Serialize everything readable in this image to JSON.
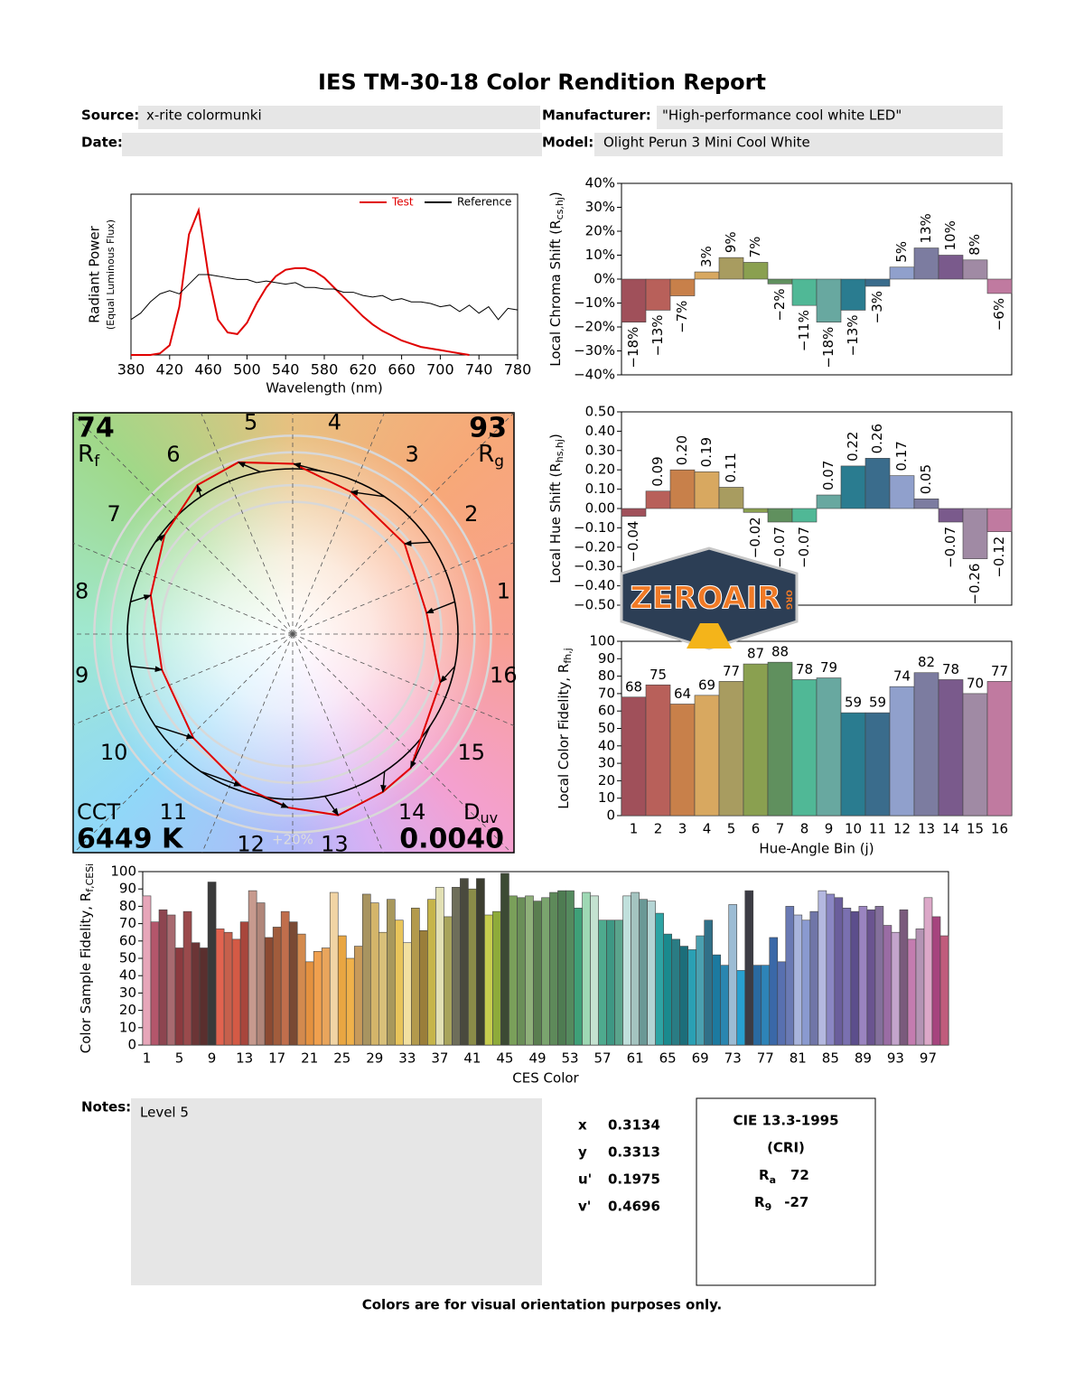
{
  "header": {
    "title": "IES TM-30-18 Color Rendition Report",
    "source_label": "Source:",
    "source": "x-rite colormunki",
    "manufacturer_label": "Manufacturer:",
    "manufacturer": "\"High-performance cool white LED\"",
    "date_label": "Date:",
    "model_label": "Model:",
    "model": "Olight Perun 3 Mini Cool White"
  },
  "chart_data": [
    {
      "type": "line",
      "xlabel": "Wavelength (nm)",
      "ylabel": [
        "Radiant Power",
        "(Equal Luminous Flux)"
      ],
      "x": [
        380,
        390,
        400,
        410,
        420,
        430,
        440,
        450,
        460,
        470,
        480,
        490,
        500,
        510,
        520,
        530,
        540,
        550,
        560,
        570,
        580,
        590,
        600,
        610,
        620,
        630,
        640,
        650,
        660,
        670,
        680,
        690,
        700,
        710,
        720,
        730,
        740,
        750,
        760,
        770,
        780
      ],
      "series": [
        {
          "name": "Test",
          "color": "#e00000",
          "values": [
            0,
            0,
            0,
            0.01,
            0.06,
            0.3,
            0.75,
            0.9,
            0.5,
            0.22,
            0.14,
            0.13,
            0.2,
            0.32,
            0.42,
            0.49,
            0.53,
            0.54,
            0.54,
            0.52,
            0.48,
            0.42,
            0.36,
            0.3,
            0.24,
            0.19,
            0.15,
            0.12,
            0.09,
            0.07,
            0.05,
            0.04,
            0.03,
            0.02,
            0.01,
            0,
            null,
            null,
            null,
            null,
            null
          ]
        },
        {
          "name": "Reference",
          "color": "#000000",
          "values": [
            0.22,
            0.26,
            0.33,
            0.38,
            0.4,
            0.38,
            0.44,
            0.5,
            0.5,
            0.49,
            0.48,
            0.47,
            0.47,
            0.45,
            0.46,
            0.45,
            0.44,
            0.45,
            0.42,
            0.42,
            0.41,
            0.41,
            0.39,
            0.39,
            0.37,
            0.36,
            0.37,
            0.34,
            0.35,
            0.33,
            0.33,
            0.32,
            0.3,
            0.31,
            0.27,
            0.31,
            0.26,
            0.3,
            0.22,
            0.29,
            0.28
          ]
        }
      ],
      "xlim": [
        380,
        780
      ],
      "xticks": [
        380,
        420,
        460,
        500,
        540,
        580,
        620,
        660,
        700,
        740,
        780
      ],
      "ylim": [
        0,
        1
      ]
    },
    {
      "type": "bar",
      "ylabel": {
        "text": "Local Chroma Shift (R",
        "sub": "cs,hj",
        "end": ")"
      },
      "values": [
        -18,
        -13,
        -7,
        3,
        9,
        7,
        -2,
        -11,
        -18,
        -13,
        -3,
        5,
        13,
        10,
        8,
        -6
      ],
      "value_labels": [
        "−18%",
        "−13%",
        "−7%",
        "3%",
        "9%",
        "7%",
        "−2%",
        "−11%",
        "−18%",
        "−13%",
        "−3%",
        "5%",
        "13%",
        "10%",
        "8%",
        "−6%"
      ],
      "colors": [
        "#a0505a",
        "#b8605a",
        "#c8804a",
        "#d8a860",
        "#a89c60",
        "#8aa050",
        "#60905e",
        "#50b896",
        "#68a8a0",
        "#2a7c90",
        "#3a6c8c",
        "#90a0cc",
        "#7c7ca0",
        "#7a5a8c",
        "#a08aa4",
        "#c07aa0"
      ],
      "ylim": [
        -40,
        40
      ],
      "yticks": [
        {
          "value": 40,
          "label": "40%"
        },
        {
          "value": 30,
          "label": "30%"
        },
        {
          "value": 20,
          "label": "20%"
        },
        {
          "value": 10,
          "label": "10%"
        },
        {
          "value": 0,
          "label": "0%"
        },
        {
          "value": -10,
          "label": "−10%"
        },
        {
          "value": -20,
          "label": "−20%"
        },
        {
          "value": -30,
          "label": "−30%"
        },
        {
          "value": -40,
          "label": "−40%"
        }
      ]
    },
    {
      "type": "bar",
      "ylabel": {
        "text": "Local Hue Shift (R",
        "sub": "hs,hj",
        "end": ")"
      },
      "values": [
        -0.04,
        0.09,
        0.2,
        0.19,
        0.11,
        -0.02,
        -0.07,
        -0.07,
        0.07,
        0.22,
        0.26,
        0.17,
        0.05,
        -0.07,
        -0.26,
        -0.12
      ],
      "value_labels": [
        "−0.04",
        "0.09",
        "0.20",
        "0.19",
        "0.11",
        "−0.02",
        "−0.07",
        "−0.07",
        "0.07",
        "0.22",
        "0.26",
        "0.17",
        "0.05",
        "−0.07",
        "−0.26",
        "−0.12"
      ],
      "colors": [
        "#a0505a",
        "#b8605a",
        "#c8804a",
        "#d8a860",
        "#a89c60",
        "#8aa050",
        "#60905e",
        "#50b896",
        "#68a8a0",
        "#2a7c90",
        "#3a6c8c",
        "#90a0cc",
        "#7c7ca0",
        "#7a5a8c",
        "#a08aa4",
        "#c07aa0"
      ],
      "ylim": [
        -0.5,
        0.5
      ],
      "yticks": [
        {
          "value": 0.5,
          "label": "0.50"
        },
        {
          "value": 0.4,
          "label": "0.40"
        },
        {
          "value": 0.3,
          "label": "0.30"
        },
        {
          "value": 0.2,
          "label": "0.20"
        },
        {
          "value": 0.1,
          "label": "0.10"
        },
        {
          "value": 0,
          "label": "0.00"
        },
        {
          "value": -0.1,
          "label": "−0.10"
        },
        {
          "value": -0.2,
          "label": "−0.20"
        },
        {
          "value": -0.3,
          "label": "−0.30"
        },
        {
          "value": -0.4,
          "label": "−0.40"
        },
        {
          "value": -0.5,
          "label": "−0.50"
        }
      ]
    },
    {
      "type": "bar",
      "ylabel": {
        "text": "Local Color Fidelity, R",
        "sub": "fh,j"
      },
      "xlabel": "Hue-Angle Bin (j)",
      "categories": [
        1,
        2,
        3,
        4,
        5,
        6,
        7,
        8,
        9,
        10,
        11,
        12,
        13,
        14,
        15,
        16
      ],
      "values": [
        68,
        75,
        64,
        69,
        77,
        87,
        88,
        78,
        79,
        59,
        59,
        74,
        82,
        78,
        70,
        77
      ],
      "colors": [
        "#a0505a",
        "#b8605a",
        "#c8804a",
        "#d8a860",
        "#a89c60",
        "#8aa050",
        "#60905e",
        "#50b896",
        "#68a8a0",
        "#2a7c90",
        "#3a6c8c",
        "#90a0cc",
        "#7c7ca0",
        "#7a5a8c",
        "#a08aa4",
        "#c07aa0"
      ],
      "ylim": [
        0,
        100
      ],
      "yticks": [
        0,
        10,
        20,
        30,
        40,
        50,
        60,
        70,
        80,
        90,
        100
      ]
    },
    {
      "type": "vector",
      "rf": 74,
      "rf_label": "R",
      "rf_sub": "f",
      "rg": 93,
      "rg_label": "R",
      "rg_sub": "g",
      "cct_label": "CCT",
      "cct": "6449 K",
      "duv_label": "D",
      "duv_sub": "uv",
      "duv": "0.0040",
      "bins": [
        1,
        2,
        3,
        4,
        5,
        6,
        7,
        8,
        9,
        10,
        11,
        12,
        13,
        14,
        15,
        16
      ],
      "ring_label": "+20%",
      "test_color": "#e00000",
      "reference_color": "#000000"
    },
    {
      "type": "bar",
      "ylabel": {
        "text": "Color Sample Fidelity, R",
        "sub": "f,CESi"
      },
      "xlabel": "CES Color",
      "categories": [
        1,
        null,
        null,
        null,
        5,
        null,
        null,
        null,
        9,
        null,
        null,
        null,
        13,
        null,
        null,
        null,
        17,
        null,
        null,
        null,
        21,
        null,
        null,
        null,
        25,
        null,
        null,
        null,
        29,
        null,
        null,
        null,
        33,
        null,
        null,
        null,
        37,
        null,
        null,
        null,
        41,
        null,
        null,
        null,
        45,
        null,
        null,
        null,
        49,
        null,
        null,
        null,
        53,
        null,
        null,
        null,
        57,
        null,
        null,
        null,
        61,
        null,
        null,
        null,
        65,
        null,
        null,
        null,
        69,
        null,
        null,
        null,
        73,
        null,
        null,
        null,
        77,
        null,
        null,
        null,
        81,
        null,
        null,
        null,
        85,
        null,
        null,
        null,
        89,
        null,
        null,
        null,
        93,
        null,
        null,
        null,
        97,
        null,
        null
      ],
      "values": [
        86,
        71,
        78,
        75,
        56,
        77,
        59,
        56,
        94,
        67,
        65,
        61,
        71,
        89,
        82,
        62,
        68,
        77,
        71,
        64,
        48,
        54,
        56,
        88,
        63,
        50,
        57,
        87,
        82,
        65,
        84,
        72,
        59,
        79,
        66,
        84,
        91,
        74,
        91,
        96,
        90,
        96,
        75,
        77,
        99,
        86,
        85,
        86,
        83,
        85,
        88,
        89,
        89,
        79,
        88,
        86,
        72,
        72,
        72,
        86,
        88,
        84,
        83,
        76,
        64,
        61,
        57,
        55,
        63,
        72,
        52,
        46,
        81,
        43,
        89,
        46,
        46,
        62,
        48,
        80,
        75,
        72,
        77,
        89,
        87,
        85,
        79,
        77,
        80,
        78,
        80,
        69,
        65,
        78,
        61,
        67,
        85,
        74,
        63
      ],
      "colors": [
        "#e7a6b9",
        "#b4566b",
        "#8d4550",
        "#a86a70",
        "#8b3a3f",
        "#9a4a4c",
        "#6b3536",
        "#5a2f2e",
        "#3a3a3a",
        "#e2634f",
        "#c6604c",
        "#d45a45",
        "#a8463c",
        "#c79a8e",
        "#b0867a",
        "#8c4a32",
        "#a15c3c",
        "#c06e4c",
        "#7a4a34",
        "#d38a4e",
        "#e4913f",
        "#f0a04e",
        "#e9a55c",
        "#f1d4a4",
        "#e9a642",
        "#f0b14a",
        "#c89a5a",
        "#a89460",
        "#d4b56a",
        "#d8c07a",
        "#a8985c",
        "#e8c45a",
        "#f2e0a0",
        "#b39a4c",
        "#9a7e3a",
        "#c6b54a",
        "#e2e0b4",
        "#a8a45c",
        "#6e6e5a",
        "#4a4a3e",
        "#8a8c48",
        "#3c3e30",
        "#c6cc4e",
        "#8eab3a",
        "#3c4a34",
        "#7aa05a",
        "#6a8e58",
        "#8fb07a",
        "#5a7e50",
        "#7aa46e",
        "#5e8a5a",
        "#4e7c52",
        "#558a5e",
        "#3ea078",
        "#9ed8b4",
        "#c4e2d0",
        "#4eaa8e",
        "#3e9884",
        "#5aa48c",
        "#c0e0dc",
        "#a4c4c0",
        "#6a9896",
        "#b4d4d4",
        "#2ea4a4",
        "#1a8a8e",
        "#2a7c84",
        "#1c6e7a",
        "#2aa0b4",
        "#4aa0b0",
        "#307088",
        "#1c7aa0",
        "#2a86b0",
        "#9cbcd4",
        "#28a0d0",
        "#3c3c44",
        "#2a6aa0",
        "#2e84b8",
        "#3a68a8",
        "#5870b0",
        "#6a7ab4",
        "#a8b4dc",
        "#8a9ad0",
        "#7076a8",
        "#b4b8e0",
        "#8a86c4",
        "#6a5e9c",
        "#7a70b0",
        "#5c4e8c",
        "#9a84c0",
        "#6a5490",
        "#84709c",
        "#9a6ca4",
        "#c4a4cc",
        "#7a5a7c",
        "#c47cb0",
        "#b494b4",
        "#dca8c8",
        "#a6447e",
        "#c05c7c"
      ],
      "ylim": [
        0,
        100
      ],
      "yticks": [
        0,
        10,
        20,
        30,
        40,
        50,
        60,
        70,
        80,
        90,
        100
      ]
    }
  ],
  "notes": {
    "label": "Notes:",
    "text": "Level 5"
  },
  "chromaticity": {
    "rows": [
      [
        "x",
        "0.3134"
      ],
      [
        "y",
        "0.3313"
      ],
      [
        "u'",
        "0.1975"
      ],
      [
        "v'",
        "0.4696"
      ]
    ]
  },
  "cri": {
    "title": "CIE 13.3-1995",
    "subtitle": "(CRI)",
    "ra_label": "R",
    "ra_sub": "a",
    "ra": 72,
    "r9_label": "R",
    "r9_sub": "9",
    "r9": -27
  },
  "footer": "Colors are for visual orientation purposes only.",
  "logo": {
    "text": "ZEROAIR",
    "suffix": "ORG"
  }
}
